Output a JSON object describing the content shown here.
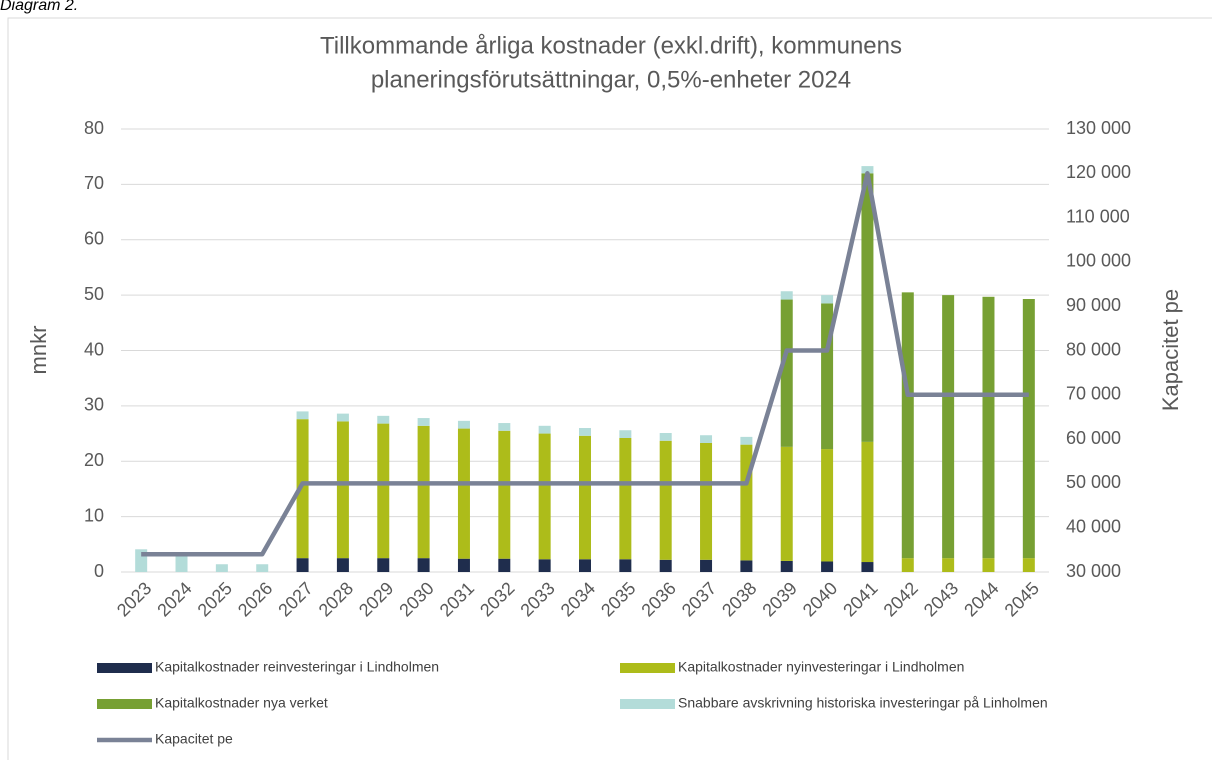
{
  "caption": "Diagram 2.",
  "chart_data": {
    "type": "bar",
    "stacked": true,
    "title": [
      "Tillkommande årliga kostnader (exkl.drift), kommunens",
      "planeringsförutsättningar, 0,5%-enheter 2024"
    ],
    "ylabel": "mnkr",
    "y2label": "Kapacitet pe",
    "categories": [
      "2023",
      "2024",
      "2025",
      "2026",
      "2027",
      "2028",
      "2029",
      "2030",
      "2031",
      "2032",
      "2033",
      "2034",
      "2035",
      "2036",
      "2037",
      "2038",
      "2039",
      "2040",
      "2041",
      "2042",
      "2043",
      "2044",
      "2045"
    ],
    "series": [
      {
        "name": "Kapitalkostnader reinvesteringar i Lindholmen",
        "color": "#1f2d4d",
        "type": "bar",
        "values": [
          0,
          0,
          0,
          0,
          2.5,
          2.5,
          2.5,
          2.5,
          2.4,
          2.4,
          2.3,
          2.3,
          2.3,
          2.2,
          2.2,
          2.1,
          2.0,
          1.9,
          1.8,
          0,
          0,
          0,
          0
        ]
      },
      {
        "name": "Kapitalkostnader nyinvesteringar i Lindholmen",
        "color": "#adbc1a",
        "type": "bar",
        "values": [
          0,
          0,
          0,
          0,
          25.1,
          24.7,
          24.3,
          23.9,
          23.5,
          23.1,
          22.7,
          22.3,
          21.9,
          21.5,
          21.1,
          20.9,
          20.6,
          20.3,
          21.7,
          2.5,
          2.5,
          2.5,
          2.5
        ]
      },
      {
        "name": "Kapitalkostnader nya verket",
        "color": "#77a033",
        "type": "bar",
        "values": [
          0,
          0,
          0,
          0,
          0,
          0,
          0,
          0,
          0,
          0,
          0,
          0,
          0,
          0,
          0,
          0,
          26.6,
          26.3,
          48.5,
          48.0,
          47.5,
          47.2,
          46.8
        ]
      },
      {
        "name": "Snabbare avskrivning historiska investeringar på Linholmen",
        "color": "#b3dcd9",
        "type": "bar",
        "values": [
          4.1,
          3.0,
          1.4,
          1.4,
          1.4,
          1.4,
          1.4,
          1.4,
          1.4,
          1.4,
          1.4,
          1.4,
          1.4,
          1.4,
          1.4,
          1.4,
          1.5,
          1.5,
          1.3,
          0,
          0,
          0,
          0
        ]
      },
      {
        "name": "Kapacitet pe",
        "color": "#7a8296",
        "type": "line",
        "axis": "y2",
        "values": [
          34000,
          34000,
          34000,
          34000,
          50000,
          50000,
          50000,
          50000,
          50000,
          50000,
          50000,
          50000,
          50000,
          50000,
          50000,
          50000,
          80000,
          80000,
          120000,
          70000,
          70000,
          70000,
          70000
        ]
      }
    ],
    "ylim": [
      0,
      80
    ],
    "yticks": [
      0,
      10,
      20,
      30,
      40,
      50,
      60,
      70,
      80
    ],
    "y2lim": [
      30000,
      130000
    ],
    "y2ticks": [
      {
        "value": 30000,
        "label": "30 000"
      },
      {
        "value": 40000,
        "label": "40 000"
      },
      {
        "value": 50000,
        "label": "50 000"
      },
      {
        "value": 60000,
        "label": "60 000"
      },
      {
        "value": 70000,
        "label": "70 000"
      },
      {
        "value": 80000,
        "label": "80 000"
      },
      {
        "value": 90000,
        "label": "90 000"
      },
      {
        "value": 100000,
        "label": "100 000"
      },
      {
        "value": 110000,
        "label": "110 000"
      },
      {
        "value": 120000,
        "label": "120 000"
      },
      {
        "value": 130000,
        "label": "130 000"
      }
    ],
    "grid": true,
    "legend": "bottom"
  }
}
